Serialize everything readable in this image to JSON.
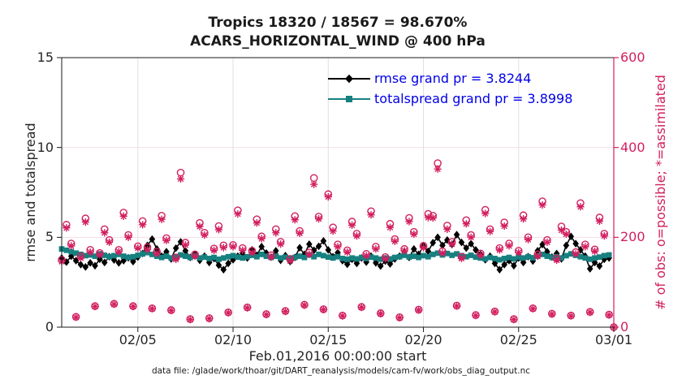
{
  "chart_data": {
    "type": "line",
    "title": "Tropics 18320 / 18567 = 98.670%",
    "subtitle": "ACARS_HORIZONTAL_WIND @ 400 hPa",
    "xlabel": "Feb.01,2016 00:00:00 start",
    "ylabel_left": "rmse and totalspread",
    "ylabel_right": "# of obs: o=possible; *=assimilated",
    "x_start": "2016-02-01 00:00",
    "x_step_hours": 6,
    "x_range_days": [
      0,
      29
    ],
    "xtick_days": [
      4,
      9,
      14,
      19,
      24,
      29
    ],
    "xtick_labels": [
      "02/05",
      "02/10",
      "02/15",
      "02/20",
      "02/25",
      "03/01"
    ],
    "ylim_left": [
      0,
      15
    ],
    "yticks_left": [
      0,
      5,
      10,
      15
    ],
    "ylim_right": [
      0,
      600
    ],
    "yticks_right": [
      0,
      200,
      400,
      600
    ],
    "grid": true,
    "legend": {
      "position": "top-center-inside",
      "entries": [
        {
          "label": "rmse grand pr = 3.8244",
          "marker": "diamond",
          "color": "#000000"
        },
        {
          "label": "totalspread grand pr = 3.8998",
          "marker": "square",
          "color": "#178080"
        }
      ]
    },
    "colors": {
      "rmse": "#000000",
      "totalspread": "#178080",
      "obs": "#d21f5f",
      "legend_text": "#0000e6",
      "grid_v": "#e0e0e0",
      "grid_h": "#f7dce8",
      "axis": "#1a1a1a"
    },
    "series": [
      {
        "name": "rmse",
        "axis": "left",
        "marker": "diamond",
        "grand_mean": 3.8244,
        "values": [
          3.85,
          3.62,
          3.95,
          3.7,
          3.48,
          3.35,
          3.58,
          3.42,
          3.78,
          3.6,
          3.92,
          3.74,
          3.58,
          3.7,
          3.86,
          3.65,
          3.9,
          4.1,
          4.55,
          4.9,
          4.35,
          3.95,
          4.2,
          3.8,
          4.4,
          4.75,
          4.25,
          3.88,
          4.05,
          3.72,
          3.95,
          3.6,
          3.82,
          3.45,
          3.2,
          3.55,
          3.75,
          3.95,
          4.15,
          3.85,
          4.3,
          4.0,
          4.48,
          4.12,
          3.9,
          4.25,
          3.72,
          3.98,
          3.65,
          3.88,
          4.42,
          4.05,
          4.62,
          4.28,
          4.5,
          4.8,
          4.3,
          3.92,
          4.15,
          3.7,
          3.5,
          3.78,
          3.55,
          3.85,
          3.62,
          3.95,
          3.58,
          3.4,
          3.68,
          3.52,
          3.8,
          3.95,
          4.2,
          3.88,
          4.35,
          4.05,
          4.52,
          4.22,
          4.7,
          5.0,
          4.55,
          4.85,
          4.6,
          5.15,
          4.72,
          4.4,
          4.65,
          4.3,
          4.05,
          3.75,
          3.95,
          3.55,
          3.2,
          3.48,
          3.7,
          3.42,
          3.85,
          3.6,
          3.92,
          3.68,
          4.25,
          4.6,
          4.2,
          3.9,
          4.1,
          3.8,
          4.55,
          5.05,
          4.65,
          4.3,
          3.95,
          3.25,
          3.6,
          3.4,
          3.78,
          3.85
        ]
      },
      {
        "name": "totalspread",
        "axis": "left",
        "marker": "square",
        "grand_mean": 3.8998,
        "values": [
          4.35,
          4.28,
          4.2,
          4.12,
          4.05,
          3.98,
          4.02,
          3.95,
          4.08,
          4.0,
          3.92,
          3.98,
          4.05,
          3.95,
          3.88,
          3.92,
          4.0,
          4.08,
          4.15,
          4.05,
          3.95,
          3.88,
          3.95,
          3.85,
          3.92,
          4.02,
          3.95,
          3.88,
          3.95,
          3.85,
          3.9,
          3.82,
          3.88,
          3.78,
          3.85,
          3.92,
          3.98,
          3.9,
          3.85,
          3.92,
          4.0,
          3.92,
          4.05,
          3.95,
          3.88,
          3.95,
          3.85,
          3.9,
          3.8,
          3.88,
          3.95,
          3.88,
          4.02,
          3.92,
          4.05,
          3.98,
          3.9,
          3.85,
          3.92,
          3.82,
          3.78,
          3.85,
          3.8,
          3.88,
          3.82,
          3.9,
          3.85,
          3.78,
          3.85,
          3.8,
          3.88,
          3.92,
          4.0,
          3.9,
          3.95,
          3.88,
          3.98,
          3.92,
          4.05,
          4.12,
          4.02,
          4.1,
          4.0,
          4.08,
          3.98,
          3.92,
          4.0,
          3.9,
          3.85,
          3.8,
          3.88,
          3.82,
          3.75,
          3.82,
          3.88,
          3.8,
          3.9,
          3.85,
          3.92,
          3.86,
          3.95,
          4.05,
          3.95,
          3.88,
          3.92,
          3.85,
          3.98,
          4.08,
          4.0,
          3.92,
          3.85,
          3.78,
          3.85,
          3.9,
          3.98,
          4.02
        ]
      },
      {
        "name": "possible",
        "axis": "right",
        "marker": "circle",
        "total": 18567,
        "values": [
          150,
          228,
          186,
          23,
          158,
          242,
          172,
          47,
          165,
          218,
          194,
          52,
          172,
          255,
          205,
          47,
          180,
          236,
          178,
          42,
          168,
          248,
          198,
          38,
          155,
          344,
          188,
          18,
          162,
          232,
          210,
          20,
          175,
          225,
          182,
          33,
          183,
          260,
          176,
          44,
          170,
          240,
          202,
          29,
          160,
          218,
          190,
          36,
          152,
          247,
          214,
          50,
          166,
          332,
          246,
          40,
          296,
          222,
          184,
          26,
          171,
          235,
          208,
          45,
          163,
          258,
          179,
          31,
          156,
          230,
          196,
          22,
          174,
          243,
          212,
          39,
          181,
          252,
          248,
          365,
          169,
          226,
          190,
          48,
          157,
          238,
          205,
          27,
          164,
          261,
          218,
          35,
          176,
          233,
          186,
          18,
          170,
          249,
          200,
          42,
          162,
          280,
          194,
          30,
          153,
          224,
          212,
          26,
          167,
          276,
          184,
          34,
          173,
          244,
          208,
          28,
          0
        ]
      },
      {
        "name": "assimilated",
        "axis": "right",
        "marker": "asterisk",
        "total": 18320,
        "values": [
          146,
          221,
          181,
          22,
          154,
          234,
          167,
          46,
          161,
          210,
          189,
          51,
          168,
          247,
          200,
          46,
          176,
          228,
          173,
          41,
          164,
          240,
          193,
          37,
          151,
          330,
          183,
          17,
          158,
          224,
          205,
          19,
          171,
          217,
          177,
          32,
          179,
          252,
          171,
          43,
          166,
          232,
          197,
          28,
          156,
          210,
          185,
          35,
          148,
          239,
          209,
          49,
          162,
          318,
          241,
          39,
          290,
          214,
          179,
          25,
          167,
          227,
          203,
          44,
          159,
          250,
          174,
          30,
          152,
          222,
          191,
          21,
          170,
          235,
          207,
          38,
          177,
          244,
          243,
          352,
          165,
          218,
          185,
          47,
          153,
          230,
          200,
          26,
          160,
          253,
          213,
          34,
          172,
          225,
          181,
          17,
          166,
          241,
          195,
          41,
          158,
          272,
          189,
          29,
          149,
          216,
          207,
          25,
          163,
          268,
          179,
          33,
          169,
          236,
          203,
          27,
          0
        ]
      }
    ]
  },
  "footer": {
    "data_file": "data file: /glade/work/thoar/git/DART_reanalysis/models/cam-fv/work/obs_diag_output.nc"
  }
}
